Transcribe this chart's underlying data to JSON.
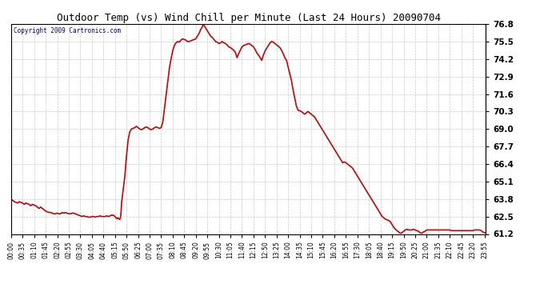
{
  "title": "Outdoor Temp (vs) Wind Chill per Minute (Last 24 Hours) 20090704",
  "copyright": "Copyright 2009 Cartronics.com",
  "line_color": "#cc0000",
  "background_color": "#ffffff",
  "grid_color": "#c8c8c8",
  "ylim": [
    61.2,
    76.8
  ],
  "yticks": [
    61.2,
    62.5,
    63.8,
    65.1,
    66.4,
    67.7,
    69.0,
    70.3,
    71.6,
    72.9,
    74.2,
    75.5,
    76.8
  ],
  "total_minutes": 1440,
  "xtick_labels": [
    "00:00",
    "00:35",
    "01:10",
    "01:45",
    "02:20",
    "02:55",
    "03:30",
    "04:05",
    "04:40",
    "05:15",
    "05:50",
    "06:25",
    "07:00",
    "07:35",
    "08:10",
    "08:45",
    "09:20",
    "09:55",
    "10:30",
    "11:05",
    "11:40",
    "12:15",
    "12:50",
    "13:25",
    "14:00",
    "14:35",
    "15:10",
    "15:45",
    "16:20",
    "16:55",
    "17:30",
    "18:05",
    "18:40",
    "19:15",
    "19:50",
    "20:25",
    "21:00",
    "21:35",
    "22:10",
    "22:45",
    "23:20",
    "23:55"
  ],
  "curve": [
    [
      0,
      63.8
    ],
    [
      5,
      63.7
    ],
    [
      10,
      63.6
    ],
    [
      15,
      63.55
    ],
    [
      20,
      63.5
    ],
    [
      25,
      63.6
    ],
    [
      30,
      63.55
    ],
    [
      35,
      63.5
    ],
    [
      40,
      63.4
    ],
    [
      45,
      63.5
    ],
    [
      50,
      63.45
    ],
    [
      55,
      63.4
    ],
    [
      60,
      63.3
    ],
    [
      65,
      63.4
    ],
    [
      70,
      63.35
    ],
    [
      75,
      63.3
    ],
    [
      80,
      63.2
    ],
    [
      85,
      63.1
    ],
    [
      90,
      63.2
    ],
    [
      95,
      63.1
    ],
    [
      100,
      63.0
    ],
    [
      105,
      62.9
    ],
    [
      110,
      62.85
    ],
    [
      115,
      62.8
    ],
    [
      120,
      62.8
    ],
    [
      125,
      62.75
    ],
    [
      130,
      62.7
    ],
    [
      135,
      62.7
    ],
    [
      140,
      62.75
    ],
    [
      145,
      62.7
    ],
    [
      150,
      62.7
    ],
    [
      155,
      62.8
    ],
    [
      160,
      62.75
    ],
    [
      165,
      62.8
    ],
    [
      170,
      62.75
    ],
    [
      175,
      62.7
    ],
    [
      180,
      62.7
    ],
    [
      185,
      62.75
    ],
    [
      190,
      62.75
    ],
    [
      195,
      62.7
    ],
    [
      200,
      62.65
    ],
    [
      205,
      62.6
    ],
    [
      210,
      62.55
    ],
    [
      215,
      62.5
    ],
    [
      220,
      62.55
    ],
    [
      225,
      62.5
    ],
    [
      230,
      62.5
    ],
    [
      235,
      62.45
    ],
    [
      240,
      62.45
    ],
    [
      245,
      62.5
    ],
    [
      250,
      62.5
    ],
    [
      255,
      62.45
    ],
    [
      260,
      62.5
    ],
    [
      265,
      62.5
    ],
    [
      270,
      62.55
    ],
    [
      275,
      62.5
    ],
    [
      280,
      62.5
    ],
    [
      285,
      62.5
    ],
    [
      290,
      62.55
    ],
    [
      295,
      62.5
    ],
    [
      300,
      62.55
    ],
    [
      305,
      62.6
    ],
    [
      310,
      62.6
    ],
    [
      315,
      62.5
    ],
    [
      316,
      62.45
    ],
    [
      317,
      62.42
    ],
    [
      318,
      62.4
    ],
    [
      319,
      62.38
    ],
    [
      320,
      62.4
    ],
    [
      321,
      62.38
    ],
    [
      322,
      62.35
    ],
    [
      323,
      62.38
    ],
    [
      324,
      62.4
    ],
    [
      325,
      62.38
    ],
    [
      326,
      62.35
    ],
    [
      327,
      62.32
    ],
    [
      328,
      62.3
    ],
    [
      329,
      62.28
    ],
    [
      330,
      62.3
    ],
    [
      331,
      62.35
    ],
    [
      332,
      62.5
    ],
    [
      333,
      62.7
    ],
    [
      334,
      63.0
    ],
    [
      335,
      63.5
    ],
    [
      340,
      64.5
    ],
    [
      345,
      65.5
    ],
    [
      350,
      67.0
    ],
    [
      355,
      68.2
    ],
    [
      360,
      68.8
    ],
    [
      365,
      69.0
    ],
    [
      370,
      69.05
    ],
    [
      375,
      69.1
    ],
    [
      380,
      69.2
    ],
    [
      385,
      69.1
    ],
    [
      390,
      69.0
    ],
    [
      395,
      68.95
    ],
    [
      400,
      69.0
    ],
    [
      405,
      69.1
    ],
    [
      410,
      69.15
    ],
    [
      415,
      69.1
    ],
    [
      420,
      69.0
    ],
    [
      425,
      68.95
    ],
    [
      430,
      69.0
    ],
    [
      435,
      69.1
    ],
    [
      440,
      69.15
    ],
    [
      445,
      69.1
    ],
    [
      450,
      69.05
    ],
    [
      455,
      69.1
    ],
    [
      460,
      69.5
    ],
    [
      465,
      70.5
    ],
    [
      470,
      71.5
    ],
    [
      475,
      72.5
    ],
    [
      480,
      73.5
    ],
    [
      485,
      74.2
    ],
    [
      490,
      74.8
    ],
    [
      495,
      75.2
    ],
    [
      500,
      75.4
    ],
    [
      505,
      75.5
    ],
    [
      510,
      75.45
    ],
    [
      515,
      75.6
    ],
    [
      520,
      75.7
    ],
    [
      525,
      75.65
    ],
    [
      530,
      75.6
    ],
    [
      535,
      75.5
    ],
    [
      540,
      75.5
    ],
    [
      545,
      75.55
    ],
    [
      550,
      75.6
    ],
    [
      555,
      75.65
    ],
    [
      560,
      75.7
    ],
    [
      565,
      75.9
    ],
    [
      570,
      76.1
    ],
    [
      575,
      76.4
    ],
    [
      580,
      76.6
    ],
    [
      582,
      76.8
    ],
    [
      585,
      76.7
    ],
    [
      590,
      76.5
    ],
    [
      595,
      76.3
    ],
    [
      600,
      76.1
    ],
    [
      605,
      75.9
    ],
    [
      610,
      75.8
    ],
    [
      615,
      75.65
    ],
    [
      620,
      75.5
    ],
    [
      625,
      75.45
    ],
    [
      630,
      75.35
    ],
    [
      635,
      75.4
    ],
    [
      640,
      75.5
    ],
    [
      645,
      75.4
    ],
    [
      650,
      75.35
    ],
    [
      655,
      75.25
    ],
    [
      660,
      75.1
    ],
    [
      665,
      75.05
    ],
    [
      670,
      74.95
    ],
    [
      675,
      74.85
    ],
    [
      680,
      74.7
    ],
    [
      685,
      74.3
    ],
    [
      690,
      74.6
    ],
    [
      695,
      74.85
    ],
    [
      700,
      75.1
    ],
    [
      705,
      75.2
    ],
    [
      710,
      75.25
    ],
    [
      715,
      75.3
    ],
    [
      720,
      75.35
    ],
    [
      725,
      75.3
    ],
    [
      730,
      75.2
    ],
    [
      735,
      75.1
    ],
    [
      740,
      74.9
    ],
    [
      745,
      74.65
    ],
    [
      750,
      74.5
    ],
    [
      755,
      74.3
    ],
    [
      760,
      74.1
    ],
    [
      765,
      74.5
    ],
    [
      770,
      74.8
    ],
    [
      775,
      75.0
    ],
    [
      780,
      75.2
    ],
    [
      785,
      75.4
    ],
    [
      790,
      75.5
    ],
    [
      795,
      75.45
    ],
    [
      800,
      75.35
    ],
    [
      805,
      75.25
    ],
    [
      810,
      75.15
    ],
    [
      815,
      75.05
    ],
    [
      820,
      74.85
    ],
    [
      825,
      74.6
    ],
    [
      830,
      74.3
    ],
    [
      835,
      74.1
    ],
    [
      840,
      73.6
    ],
    [
      845,
      73.1
    ],
    [
      850,
      72.6
    ],
    [
      855,
      71.9
    ],
    [
      860,
      71.3
    ],
    [
      865,
      70.7
    ],
    [
      870,
      70.4
    ],
    [
      875,
      70.35
    ],
    [
      880,
      70.3
    ],
    [
      885,
      70.2
    ],
    [
      890,
      70.1
    ],
    [
      895,
      70.2
    ],
    [
      900,
      70.3
    ],
    [
      905,
      70.2
    ],
    [
      910,
      70.1
    ],
    [
      915,
      70.0
    ],
    [
      920,
      69.9
    ],
    [
      925,
      69.7
    ],
    [
      930,
      69.5
    ],
    [
      935,
      69.3
    ],
    [
      940,
      69.1
    ],
    [
      945,
      68.9
    ],
    [
      950,
      68.7
    ],
    [
      955,
      68.5
    ],
    [
      960,
      68.3
    ],
    [
      965,
      68.1
    ],
    [
      970,
      67.9
    ],
    [
      975,
      67.7
    ],
    [
      980,
      67.5
    ],
    [
      985,
      67.3
    ],
    [
      990,
      67.1
    ],
    [
      995,
      66.9
    ],
    [
      1000,
      66.7
    ],
    [
      1005,
      66.5
    ],
    [
      1010,
      66.55
    ],
    [
      1015,
      66.5
    ],
    [
      1020,
      66.4
    ],
    [
      1025,
      66.3
    ],
    [
      1030,
      66.2
    ],
    [
      1035,
      66.1
    ],
    [
      1040,
      65.9
    ],
    [
      1045,
      65.7
    ],
    [
      1050,
      65.5
    ],
    [
      1055,
      65.3
    ],
    [
      1060,
      65.1
    ],
    [
      1065,
      64.9
    ],
    [
      1070,
      64.7
    ],
    [
      1075,
      64.5
    ],
    [
      1080,
      64.3
    ],
    [
      1085,
      64.1
    ],
    [
      1090,
      63.9
    ],
    [
      1095,
      63.7
    ],
    [
      1100,
      63.5
    ],
    [
      1105,
      63.3
    ],
    [
      1110,
      63.1
    ],
    [
      1115,
      62.9
    ],
    [
      1120,
      62.7
    ],
    [
      1125,
      62.5
    ],
    [
      1130,
      62.4
    ],
    [
      1135,
      62.3
    ],
    [
      1140,
      62.25
    ],
    [
      1145,
      62.2
    ],
    [
      1150,
      62.1
    ],
    [
      1155,
      61.9
    ],
    [
      1160,
      61.7
    ],
    [
      1165,
      61.55
    ],
    [
      1170,
      61.45
    ],
    [
      1175,
      61.35
    ],
    [
      1180,
      61.25
    ],
    [
      1185,
      61.3
    ],
    [
      1190,
      61.4
    ],
    [
      1195,
      61.5
    ],
    [
      1200,
      61.55
    ],
    [
      1205,
      61.5
    ],
    [
      1210,
      61.5
    ],
    [
      1215,
      61.5
    ],
    [
      1220,
      61.55
    ],
    [
      1225,
      61.5
    ],
    [
      1230,
      61.45
    ],
    [
      1235,
      61.4
    ],
    [
      1240,
      61.3
    ],
    [
      1245,
      61.25
    ],
    [
      1250,
      61.35
    ],
    [
      1255,
      61.4
    ],
    [
      1260,
      61.5
    ],
    [
      1265,
      61.5
    ],
    [
      1270,
      61.5
    ],
    [
      1275,
      61.5
    ],
    [
      1280,
      61.5
    ],
    [
      1285,
      61.5
    ],
    [
      1290,
      61.5
    ],
    [
      1295,
      61.5
    ],
    [
      1300,
      61.5
    ],
    [
      1305,
      61.5
    ],
    [
      1310,
      61.5
    ],
    [
      1315,
      61.5
    ],
    [
      1320,
      61.5
    ],
    [
      1325,
      61.5
    ],
    [
      1330,
      61.5
    ],
    [
      1335,
      61.45
    ],
    [
      1340,
      61.45
    ],
    [
      1345,
      61.45
    ],
    [
      1350,
      61.45
    ],
    [
      1355,
      61.45
    ],
    [
      1360,
      61.45
    ],
    [
      1365,
      61.45
    ],
    [
      1370,
      61.45
    ],
    [
      1375,
      61.45
    ],
    [
      1380,
      61.45
    ],
    [
      1385,
      61.45
    ],
    [
      1390,
      61.45
    ],
    [
      1395,
      61.45
    ],
    [
      1400,
      61.45
    ],
    [
      1405,
      61.5
    ],
    [
      1410,
      61.5
    ],
    [
      1415,
      61.5
    ],
    [
      1420,
      61.5
    ],
    [
      1425,
      61.45
    ],
    [
      1430,
      61.35
    ],
    [
      1435,
      61.3
    ],
    [
      1439,
      61.3
    ]
  ]
}
